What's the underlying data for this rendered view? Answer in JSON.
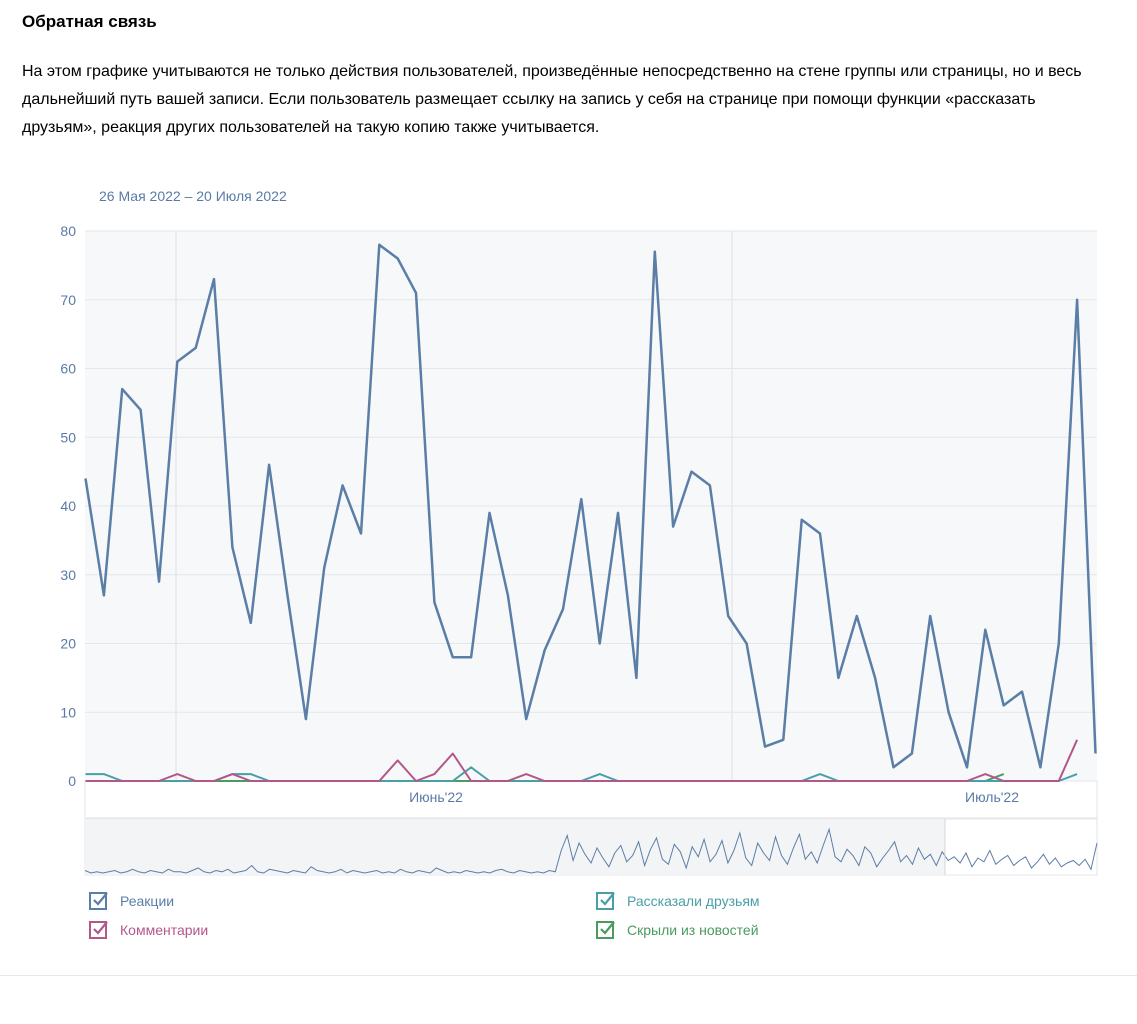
{
  "header": {
    "title": "Обратная связь",
    "description": "На этом графике учитываются не только действия пользователей, произведённые непосредственно на стене группы или страницы, но и весь дальнейший путь вашей записи. Если пользователь размещает ссылку на запись у себя на странице при помощи функции «рассказать друзьям», реакция других пользователей на такую копию также учитывается.",
    "date_range": "26 Мая 2022 – 20 Июля 2022"
  },
  "chart_data": {
    "type": "line",
    "ylim": [
      0,
      80
    ],
    "yticks": [
      0,
      10,
      20,
      30,
      40,
      50,
      60,
      70,
      80
    ],
    "xtick_labels": [
      "Июнь'22",
      "Июль'22"
    ],
    "grid": true,
    "legend_position": "bottom",
    "series": [
      {
        "name": "Реакции",
        "color": "#5b7ea6",
        "values": [
          44,
          27,
          57,
          54,
          29,
          61,
          63,
          73,
          34,
          23,
          46,
          27,
          9,
          31,
          43,
          36,
          78,
          76,
          71,
          26,
          18,
          18,
          39,
          27,
          9,
          19,
          25,
          41,
          20,
          39,
          15,
          77,
          37,
          45,
          43,
          24,
          20,
          5,
          6,
          38,
          36,
          15,
          24,
          15,
          2,
          4,
          24,
          10,
          2,
          22,
          11,
          13,
          2,
          20,
          70,
          4
        ]
      },
      {
        "name": "Комментарии",
        "color": "#b3578b",
        "values": [
          0,
          0,
          0,
          0,
          0,
          1,
          0,
          0,
          1,
          0,
          0,
          0,
          0,
          0,
          0,
          0,
          0,
          3,
          0,
          1,
          4,
          0,
          0,
          0,
          1,
          0,
          0,
          0,
          0,
          0,
          0,
          0,
          0,
          0,
          0,
          0,
          0,
          0,
          0,
          0,
          0,
          0,
          0,
          0,
          0,
          0,
          0,
          0,
          0,
          1,
          0,
          0,
          0,
          0,
          6,
          null
        ]
      },
      {
        "name": "Рассказали друзьям",
        "color": "#4a9ea8",
        "values": [
          1,
          1,
          0,
          0,
          0,
          0,
          0,
          0,
          1,
          1,
          0,
          0,
          0,
          0,
          0,
          0,
          0,
          0,
          0,
          0,
          0,
          2,
          0,
          0,
          0,
          0,
          0,
          0,
          1,
          0,
          0,
          0,
          0,
          0,
          0,
          0,
          0,
          0,
          0,
          0,
          1,
          0,
          0,
          0,
          0,
          0,
          0,
          0,
          0,
          0,
          0,
          0,
          0,
          0,
          1,
          null
        ]
      },
      {
        "name": "Скрыли из новостей",
        "color": "#4b9a5e",
        "values": [
          0,
          0,
          0,
          0,
          0,
          0,
          0,
          0,
          0,
          0,
          0,
          0,
          0,
          0,
          0,
          0,
          0,
          0,
          0,
          0,
          0,
          0,
          0,
          0,
          0,
          0,
          0,
          0,
          0,
          0,
          0,
          0,
          0,
          0,
          0,
          0,
          0,
          0,
          0,
          0,
          0,
          0,
          0,
          0,
          0,
          0,
          0,
          0,
          0,
          0,
          1,
          null,
          null,
          null,
          null,
          null
        ]
      }
    ],
    "overview_series": [
      2,
      0,
      1,
      0,
      1,
      2,
      0,
      1,
      3,
      1,
      0,
      2,
      1,
      0,
      3,
      1,
      1,
      0,
      2,
      4,
      1,
      0,
      2,
      1,
      3,
      0,
      1,
      2,
      6,
      1,
      0,
      3,
      2,
      1,
      0,
      2,
      1,
      0,
      5,
      2,
      1,
      0,
      1,
      3,
      0,
      2,
      1,
      0,
      1,
      2,
      0,
      1,
      0,
      3,
      1,
      0,
      2,
      1,
      0,
      4,
      2,
      0,
      1,
      0,
      2,
      1,
      0,
      1,
      0,
      2,
      3,
      1,
      0,
      2,
      1,
      0,
      1,
      0,
      2,
      1,
      18,
      30,
      10,
      24,
      15,
      8,
      20,
      12,
      5,
      16,
      22,
      9,
      14,
      25,
      6,
      19,
      28,
      11,
      7,
      23,
      17,
      4,
      21,
      13,
      27,
      9,
      15,
      26,
      8,
      18,
      32,
      12,
      6,
      24,
      16,
      10,
      29,
      14,
      7,
      20,
      31,
      11,
      17,
      8,
      22,
      35,
      13,
      9,
      19,
      14,
      6,
      21,
      16,
      5,
      12,
      18,
      25,
      9,
      14,
      7,
      20,
      11,
      15,
      6,
      17,
      10,
      13,
      8,
      16,
      5,
      12,
      9,
      18,
      7,
      11,
      14,
      6,
      10,
      13,
      4,
      9,
      15,
      7,
      12,
      5,
      8,
      10,
      6,
      11,
      3,
      24
    ]
  },
  "legend": [
    {
      "label": "Реакции",
      "color": "#5b7ea6"
    },
    {
      "label": "Комментарии",
      "color": "#b3578b"
    },
    {
      "label": "Рассказали друзьям",
      "color": "#4a9ea8"
    },
    {
      "label": "Скрыли из новостей",
      "color": "#4b9a5e"
    }
  ]
}
